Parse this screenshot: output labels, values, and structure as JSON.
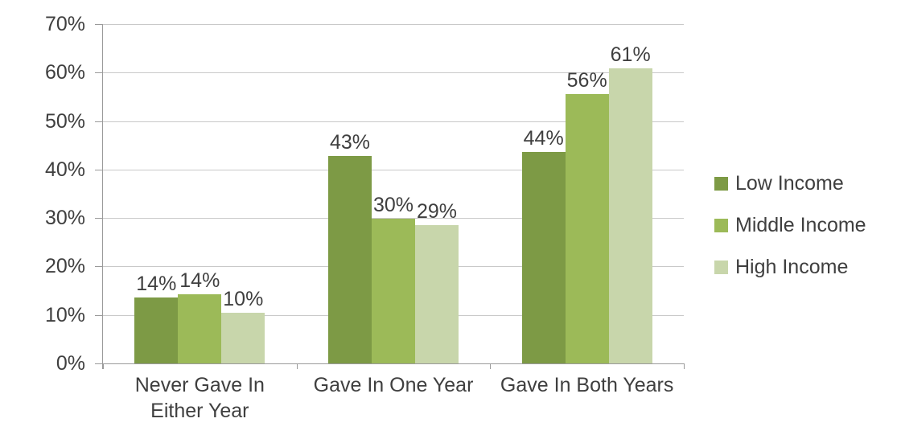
{
  "chart_data": {
    "type": "bar",
    "categories": [
      "Never Gave In Either Year",
      "Gave In One Year",
      "Gave In Both Years"
    ],
    "category_lines": [
      [
        "Never Gave In",
        "Either Year"
      ],
      [
        "Gave In One Year"
      ],
      [
        "Gave In Both Years"
      ]
    ],
    "series": [
      {
        "name": "Low Income",
        "color": "#7D9A45",
        "values": [
          14,
          43,
          44
        ],
        "labels": [
          "14%",
          "43%",
          "44%"
        ],
        "bar_heights_pct": [
          13.6,
          42.8,
          43.7
        ]
      },
      {
        "name": "Middle Income",
        "color": "#9CBA58",
        "values": [
          14,
          30,
          56
        ],
        "labels": [
          "14%",
          "30%",
          "56%"
        ],
        "bar_heights_pct": [
          14.3,
          29.9,
          55.5
        ]
      },
      {
        "name": "High Income",
        "color": "#C8D6AB",
        "values": [
          10,
          29,
          61
        ],
        "labels": [
          "10%",
          "29%",
          "61%"
        ],
        "bar_heights_pct": [
          10.4,
          28.6,
          60.9
        ]
      }
    ],
    "y_ticks": [
      "0%",
      "10%",
      "20%",
      "30%",
      "40%",
      "50%",
      "60%",
      "70%"
    ],
    "ylim": [
      0,
      70
    ],
    "grid": true,
    "legend_position": "right",
    "xlabel": "",
    "ylabel": ""
  },
  "theme": {
    "background": "#FFFFFF",
    "grid_color": "#C9C9C9",
    "axis_color": "#9A9A9A",
    "text_color": "#3F3F3F"
  }
}
